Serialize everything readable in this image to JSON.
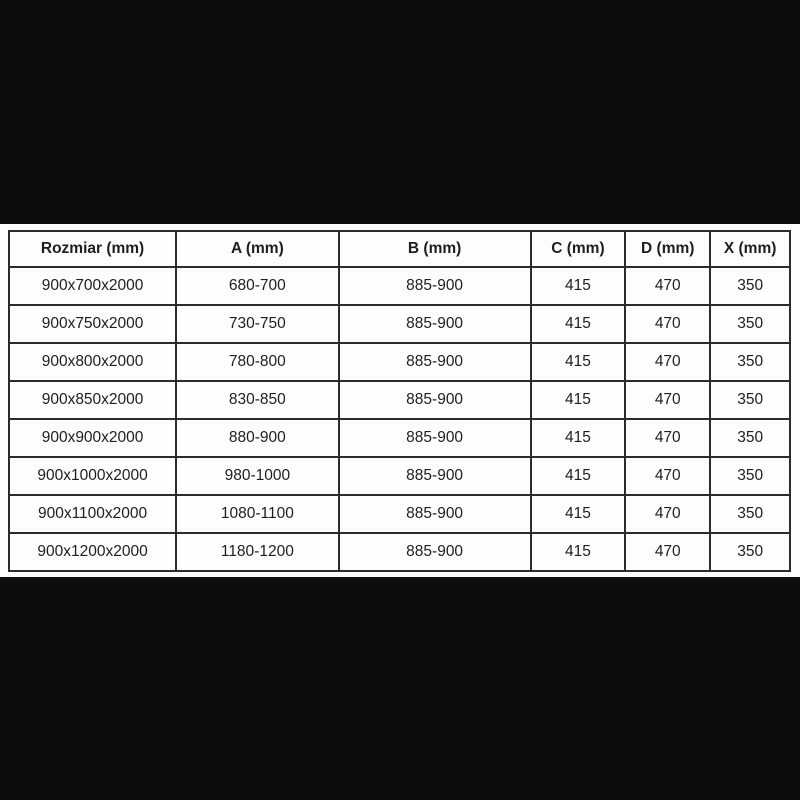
{
  "colors": {
    "page_background": "#0d0d0d",
    "band_background": "#fdfdfd",
    "table_border": "#2c2c2c",
    "text": "#1e1e1e"
  },
  "chart_data": {
    "type": "table",
    "title": "",
    "columns": [
      "Rozmiar (mm)",
      "A (mm)",
      "B (mm)",
      "C (mm)",
      "D (mm)",
      "X (mm)"
    ],
    "rows": [
      [
        "900x700x2000",
        "680-700",
        "885-900",
        "415",
        "470",
        "350"
      ],
      [
        "900x750x2000",
        "730-750",
        "885-900",
        "415",
        "470",
        "350"
      ],
      [
        "900x800x2000",
        "780-800",
        "885-900",
        "415",
        "470",
        "350"
      ],
      [
        "900x850x2000",
        "830-850",
        "885-900",
        "415",
        "470",
        "350"
      ],
      [
        "900x900x2000",
        "880-900",
        "885-900",
        "415",
        "470",
        "350"
      ],
      [
        "900x1000x2000",
        "980-1000",
        "885-900",
        "415",
        "470",
        "350"
      ],
      [
        "900x1100x2000",
        "1080-1100",
        "885-900",
        "415",
        "470",
        "350"
      ],
      [
        "900x1200x2000",
        "1180-1200",
        "885-900",
        "415",
        "470",
        "350"
      ]
    ]
  }
}
